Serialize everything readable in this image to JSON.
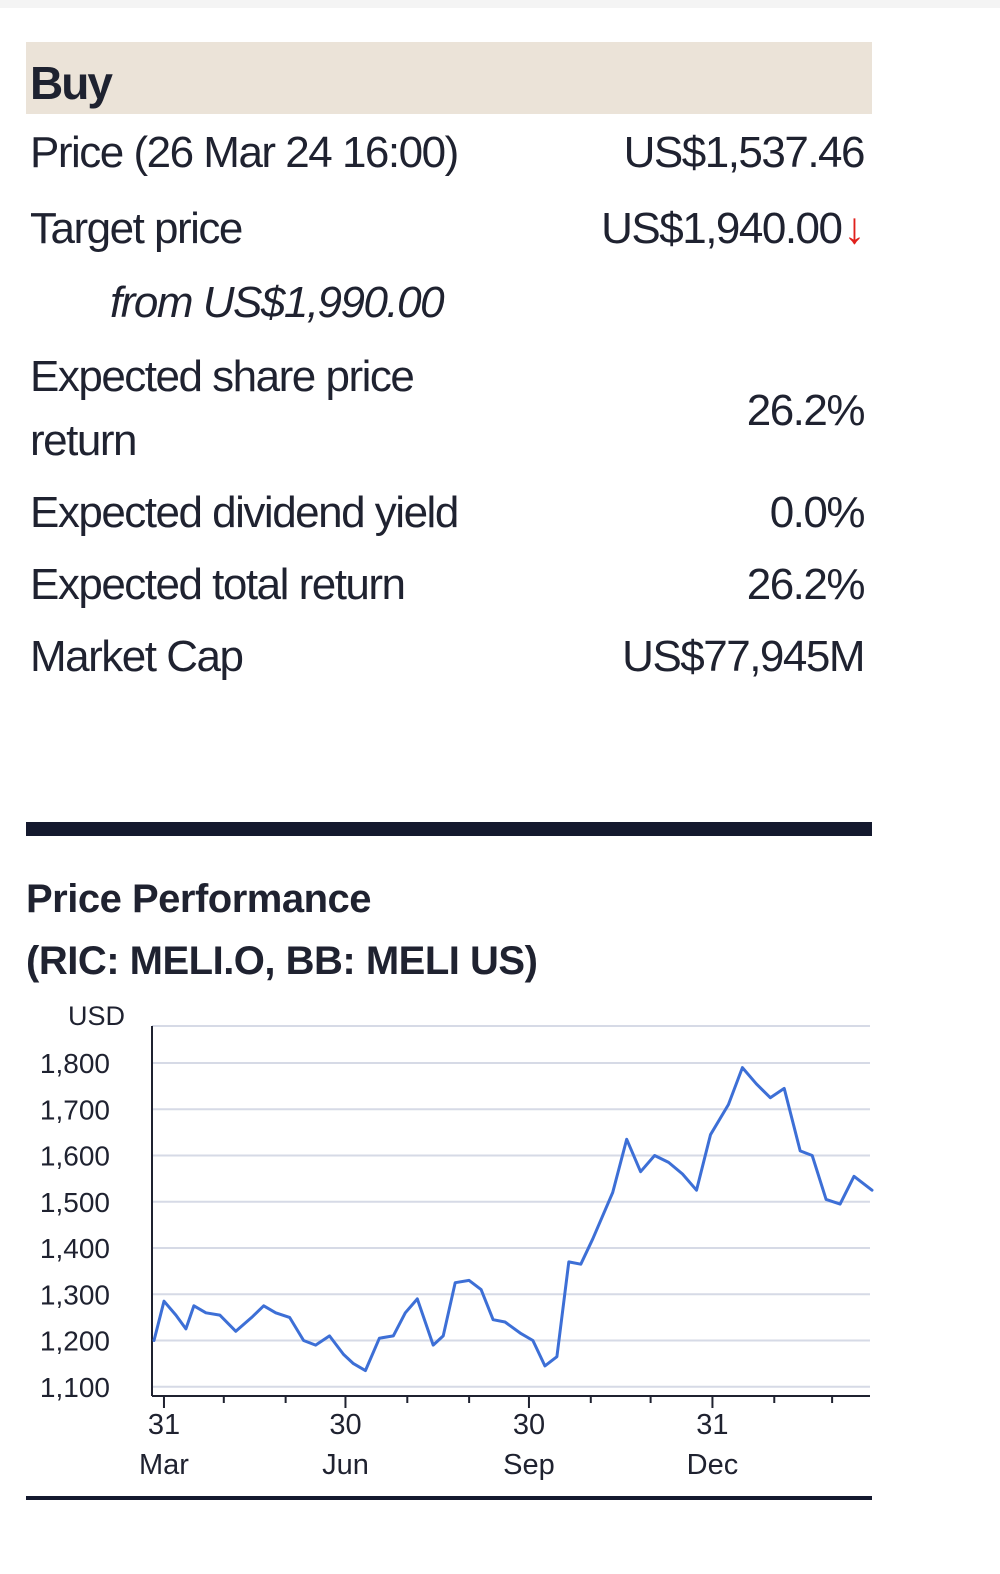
{
  "rating": "Buy",
  "rows": {
    "price": {
      "label": "Price (26 Mar 24 16:00)",
      "value": "US$1,537.46"
    },
    "target": {
      "label": "Target price",
      "value": "US$1,940.00",
      "arrow": "↓",
      "from": "from US$1,990.00"
    },
    "share_return": {
      "label_line1": "Expected share price",
      "label_line2": "return",
      "value": "26.2%"
    },
    "dividend": {
      "label": "Expected dividend yield",
      "value": "0.0%"
    },
    "total_return": {
      "label": "Expected total return",
      "value": "26.2%"
    },
    "market_cap": {
      "label": "Market Cap",
      "value": "US$77,945M"
    }
  },
  "colors": {
    "header_bg": "#ebe3d8",
    "line": "#3d6fd6",
    "rule": "#14192e",
    "arrow_down": "#e0201c"
  },
  "chart_data": {
    "type": "line",
    "title_line1": "Price Performance",
    "title_line2": "(RIC: MELI.O, BB: MELI US)",
    "ylabel": "USD",
    "ylim": [
      1080,
      1880
    ],
    "y_ticks": [
      1100,
      1200,
      1300,
      1400,
      1500,
      1600,
      1700,
      1800
    ],
    "y_tick_labels": [
      "1,100",
      "1,200",
      "1,300",
      "1,400",
      "1,500",
      "1,600",
      "1,700",
      "1,800"
    ],
    "x_ticks": [
      {
        "date": "2023-03-31",
        "day": "31",
        "month": "Mar"
      },
      {
        "date": "2023-06-30",
        "day": "30",
        "month": "Jun"
      },
      {
        "date": "2023-09-30",
        "day": "30",
        "month": "Sep"
      },
      {
        "date": "2023-12-31",
        "day": "31",
        "month": "Dec"
      }
    ],
    "grid": true,
    "series": [
      {
        "points": [
          [
            "2023-03-26",
            1200
          ],
          [
            "2023-03-31",
            1285
          ],
          [
            "2023-04-06",
            1255
          ],
          [
            "2023-04-11",
            1225
          ],
          [
            "2023-04-15",
            1275
          ],
          [
            "2023-04-21",
            1260
          ],
          [
            "2023-04-28",
            1255
          ],
          [
            "2023-05-06",
            1220
          ],
          [
            "2023-05-14",
            1250
          ],
          [
            "2023-05-20",
            1275
          ],
          [
            "2023-05-26",
            1260
          ],
          [
            "2023-06-02",
            1250
          ],
          [
            "2023-06-09",
            1200
          ],
          [
            "2023-06-15",
            1190
          ],
          [
            "2023-06-22",
            1210
          ],
          [
            "2023-06-29",
            1170
          ],
          [
            "2023-07-04",
            1150
          ],
          [
            "2023-07-10",
            1135
          ],
          [
            "2023-07-17",
            1205
          ],
          [
            "2023-07-24",
            1210
          ],
          [
            "2023-07-30",
            1260
          ],
          [
            "2023-08-05",
            1290
          ],
          [
            "2023-08-13",
            1190
          ],
          [
            "2023-08-18",
            1210
          ],
          [
            "2023-08-24",
            1325
          ],
          [
            "2023-08-31",
            1330
          ],
          [
            "2023-09-06",
            1310
          ],
          [
            "2023-09-12",
            1245
          ],
          [
            "2023-09-18",
            1240
          ],
          [
            "2023-09-26",
            1215
          ],
          [
            "2023-10-02",
            1200
          ],
          [
            "2023-10-08",
            1145
          ],
          [
            "2023-10-14",
            1165
          ],
          [
            "2023-10-20",
            1370
          ],
          [
            "2023-10-26",
            1365
          ],
          [
            "2023-11-01",
            1420
          ],
          [
            "2023-11-11",
            1520
          ],
          [
            "2023-11-18",
            1635
          ],
          [
            "2023-11-25",
            1565
          ],
          [
            "2023-12-02",
            1600
          ],
          [
            "2023-12-09",
            1585
          ],
          [
            "2023-12-16",
            1560
          ],
          [
            "2023-12-23",
            1525
          ],
          [
            "2023-12-30",
            1645
          ],
          [
            "2024-01-08",
            1710
          ],
          [
            "2024-01-15",
            1790
          ],
          [
            "2024-01-22",
            1755
          ],
          [
            "2024-01-29",
            1725
          ],
          [
            "2024-02-05",
            1745
          ],
          [
            "2024-02-13",
            1610
          ],
          [
            "2024-02-19",
            1600
          ],
          [
            "2024-02-26",
            1505
          ],
          [
            "2024-03-04",
            1495
          ],
          [
            "2024-03-11",
            1555
          ],
          [
            "2024-03-20",
            1525
          ]
        ]
      }
    ]
  }
}
